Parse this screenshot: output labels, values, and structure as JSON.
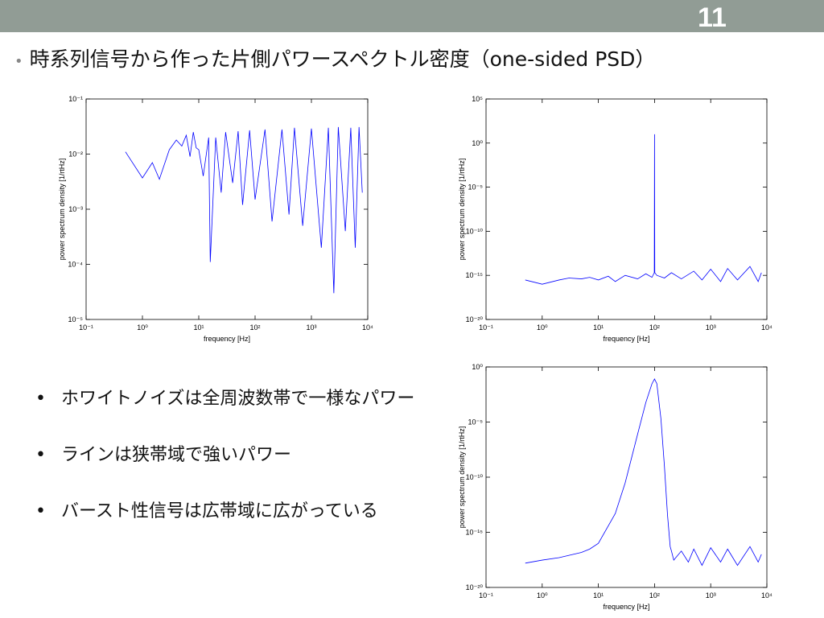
{
  "page_number": "11",
  "title": "時系列信号から作った片側パワースペクトル密度（one-sided PSD）",
  "bullets": [
    "ホワイトノイズは全周波数帯で一様なパワー",
    "ラインは狭帯域で強いパワー",
    "バースト性信号は広帯域に広がっている"
  ],
  "chart_data": [
    {
      "type": "line",
      "xlabel": "frequency [Hz]",
      "ylabel": "power spectrum density [1/rtHz]",
      "xscale": "log",
      "yscale": "log",
      "color": "#0000ff",
      "xlim": [
        0.1,
        10000
      ],
      "xticks": [
        {
          "value": 0.1,
          "label": "10⁻¹"
        },
        {
          "value": 1,
          "label": "10⁰"
        },
        {
          "value": 10,
          "label": "10¹"
        },
        {
          "value": 100,
          "label": "10²"
        },
        {
          "value": 1000,
          "label": "10³"
        },
        {
          "value": 10000,
          "label": "10⁴"
        }
      ],
      "ylim": [
        1e-05,
        0.1
      ],
      "yticks": [
        {
          "value": 1e-05,
          "label": "10⁻⁵"
        },
        {
          "value": 0.0001,
          "label": "10⁻⁴"
        },
        {
          "value": 0.001,
          "label": "10⁻³"
        },
        {
          "value": 0.01,
          "label": "10⁻²"
        },
        {
          "value": 0.1,
          "label": "10⁻¹"
        }
      ],
      "x": [
        0.5,
        1,
        1.5,
        2,
        3,
        4,
        5,
        6,
        7,
        8,
        9,
        10,
        12,
        15,
        16,
        20,
        25,
        30,
        40,
        50,
        60,
        80,
        100,
        150,
        200,
        300,
        400,
        500,
        700,
        1000,
        1500,
        2000,
        2500,
        3000,
        4000,
        5000,
        6000,
        7000,
        8000
      ],
      "values": [
        0.011,
        0.0037,
        0.007,
        0.0035,
        0.012,
        0.018,
        0.014,
        0.022,
        0.009,
        0.025,
        0.013,
        0.012,
        0.004,
        0.02,
        0.00011,
        0.02,
        0.002,
        0.025,
        0.003,
        0.026,
        0.0012,
        0.027,
        0.0015,
        0.028,
        0.0006,
        0.028,
        0.0008,
        0.03,
        0.0005,
        0.029,
        0.0002,
        0.03,
        3e-05,
        0.031,
        0.0004,
        0.03,
        0.0002,
        0.031,
        0.002
      ]
    },
    {
      "type": "line",
      "xlabel": "frequency [Hz]",
      "ylabel": "power spectrum density [1/rtHz]",
      "xscale": "log",
      "yscale": "log",
      "color": "#0000ff",
      "xlim": [
        0.1,
        10000
      ],
      "xticks": [
        {
          "value": 0.1,
          "label": "10⁻¹"
        },
        {
          "value": 1,
          "label": "10⁰"
        },
        {
          "value": 10,
          "label": "10¹"
        },
        {
          "value": 100,
          "label": "10²"
        },
        {
          "value": 1000,
          "label": "10³"
        },
        {
          "value": 10000,
          "label": "10⁴"
        }
      ],
      "ylim": [
        1e-20,
        100000
      ],
      "yticks": [
        {
          "value": 1e-20,
          "label": "10⁻²⁰"
        },
        {
          "value": 1e-15,
          "label": "10⁻¹⁵"
        },
        {
          "value": 1e-10,
          "label": "10⁻¹⁰"
        },
        {
          "value": 1e-05,
          "label": "10⁻⁵"
        },
        {
          "value": 1,
          "label": "10⁰"
        },
        {
          "value": 100000,
          "label": "10⁵"
        }
      ],
      "x": [
        0.5,
        1,
        2,
        3,
        5,
        7,
        10,
        15,
        20,
        30,
        50,
        70,
        90,
        99,
        100,
        101,
        110,
        150,
        200,
        300,
        500,
        700,
        1000,
        1500,
        2000,
        3000,
        5000,
        7000,
        8000
      ],
      "values": [
        3e-16,
        1e-16,
        3e-16,
        5e-16,
        4e-16,
        6e-16,
        3e-16,
        8e-16,
        2e-16,
        1e-15,
        4e-16,
        1.5e-15,
        6e-16,
        2e-15,
        10,
        2e-15,
        1e-15,
        5e-16,
        2e-15,
        4e-16,
        3e-15,
        3e-16,
        5e-15,
        2e-16,
        6e-15,
        3e-16,
        1e-14,
        2e-16,
        2e-15
      ]
    },
    {
      "type": "line",
      "xlabel": "frequency [Hz]",
      "ylabel": "power spectrum density [1/rtHz]",
      "xscale": "log",
      "yscale": "log",
      "color": "#0000ff",
      "xlim": [
        0.1,
        10000
      ],
      "xticks": [
        {
          "value": 0.1,
          "label": "10⁻¹"
        },
        {
          "value": 1,
          "label": "10⁰"
        },
        {
          "value": 10,
          "label": "10¹"
        },
        {
          "value": 100,
          "label": "10²"
        },
        {
          "value": 1000,
          "label": "10³"
        },
        {
          "value": 10000,
          "label": "10⁴"
        }
      ],
      "ylim": [
        1e-20,
        1
      ],
      "yticks": [
        {
          "value": 1e-20,
          "label": "10⁻²⁰"
        },
        {
          "value": 1e-15,
          "label": "10⁻¹⁵"
        },
        {
          "value": 1e-10,
          "label": "10⁻¹⁰"
        },
        {
          "value": 1e-05,
          "label": "10⁻⁵"
        },
        {
          "value": 1,
          "label": "10⁰"
        }
      ],
      "x": [
        0.5,
        1,
        2,
        5,
        7,
        10,
        20,
        30,
        50,
        70,
        90,
        100,
        110,
        130,
        150,
        170,
        190,
        200,
        220,
        300,
        400,
        500,
        700,
        1000,
        1500,
        2000,
        3000,
        5000,
        7000,
        8000
      ],
      "values": [
        1.6e-18,
        3e-18,
        5e-18,
        1.5e-17,
        3e-17,
        1e-16,
        5e-14,
        3e-11,
        8e-07,
        0.0006,
        0.03,
        0.08,
        0.03,
        2e-05,
        1e-09,
        4e-14,
        5e-17,
        2e-17,
        3e-18,
        2e-17,
        2e-18,
        3e-17,
        1e-18,
        4e-17,
        2e-18,
        3e-17,
        1e-18,
        5e-17,
        2e-18,
        1e-17
      ]
    }
  ]
}
